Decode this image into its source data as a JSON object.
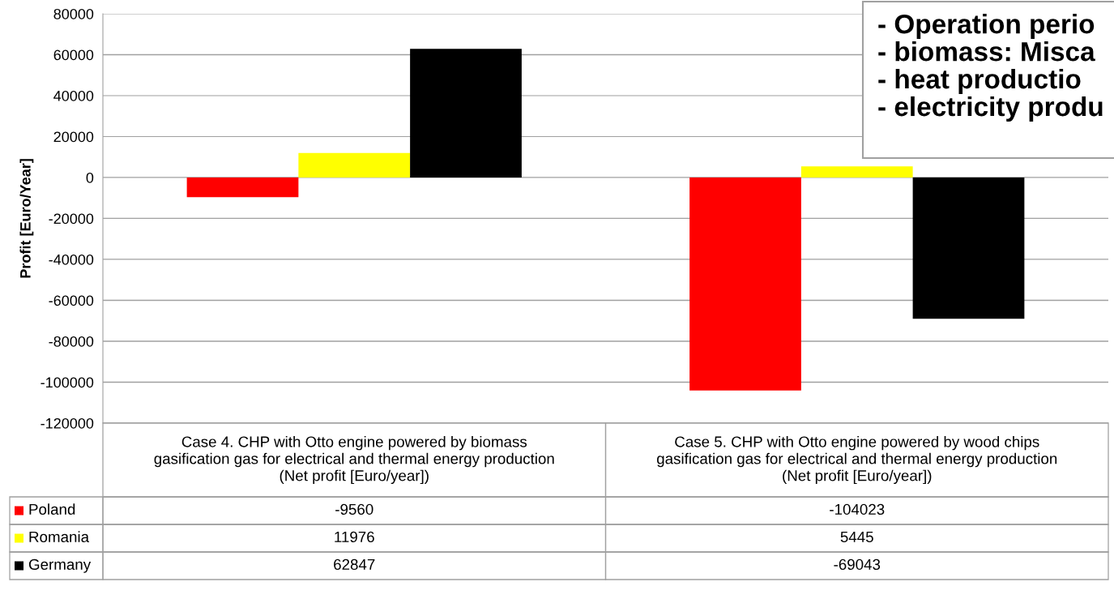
{
  "chart_data": {
    "type": "bar",
    "ylabel": "Profit [Euro/Year]",
    "categories": [
      "Case 4. CHP with Otto engine powered by biomass\ngasification gas for electrical and thermal energy production\n(Net profit [Euro/year])",
      "Case 5. CHP with Otto engine powered by wood chips\ngasification gas for electrical and thermal energy production\n(Net profit [Euro/year])"
    ],
    "series": [
      {
        "name": "Poland",
        "color": "#ff0000",
        "values": [
          -9560,
          -104023
        ]
      },
      {
        "name": "Romania",
        "color": "#ffff00",
        "values": [
          11976,
          5445
        ]
      },
      {
        "name": "Germany",
        "color": "#000000",
        "values": [
          62847,
          -69043
        ]
      }
    ],
    "ylim": [
      -120000,
      80000
    ],
    "yticks": [
      -120000,
      -100000,
      -80000,
      -60000,
      -40000,
      -20000,
      0,
      20000,
      40000,
      60000,
      80000
    ],
    "grid": "y",
    "data_labels": true,
    "legend": "bottom left",
    "annotations": [
      "- Operation perio\n- biomass: Misca\n- heat productio\n- electricity produ"
    ]
  }
}
